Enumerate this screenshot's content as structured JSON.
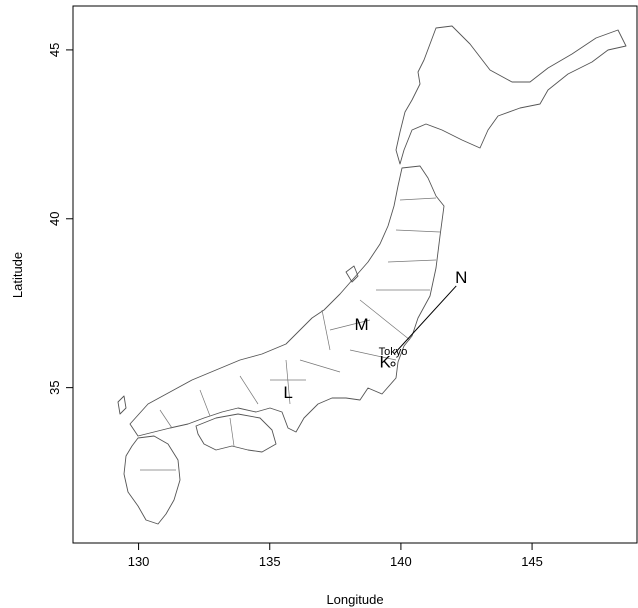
{
  "map": {
    "xlabel": "Longitude",
    "ylabel": "Latitude",
    "xlim": [
      127.5,
      149.0
    ],
    "ylim": [
      30.4,
      46.3
    ],
    "xticks": [
      130,
      135,
      140,
      145
    ],
    "yticks": [
      35,
      40,
      45
    ],
    "region_labels": [
      {
        "text": "N",
        "lon": 142.3,
        "lat": 38.1
      },
      {
        "text": "M",
        "lon": 138.5,
        "lat": 36.7
      },
      {
        "text": "K",
        "lon": 139.4,
        "lat": 35.6
      },
      {
        "text": "L",
        "lon": 135.7,
        "lat": 34.7
      }
    ],
    "city": {
      "name": "Tokyo",
      "lon": 139.7,
      "lat": 35.7
    }
  }
}
